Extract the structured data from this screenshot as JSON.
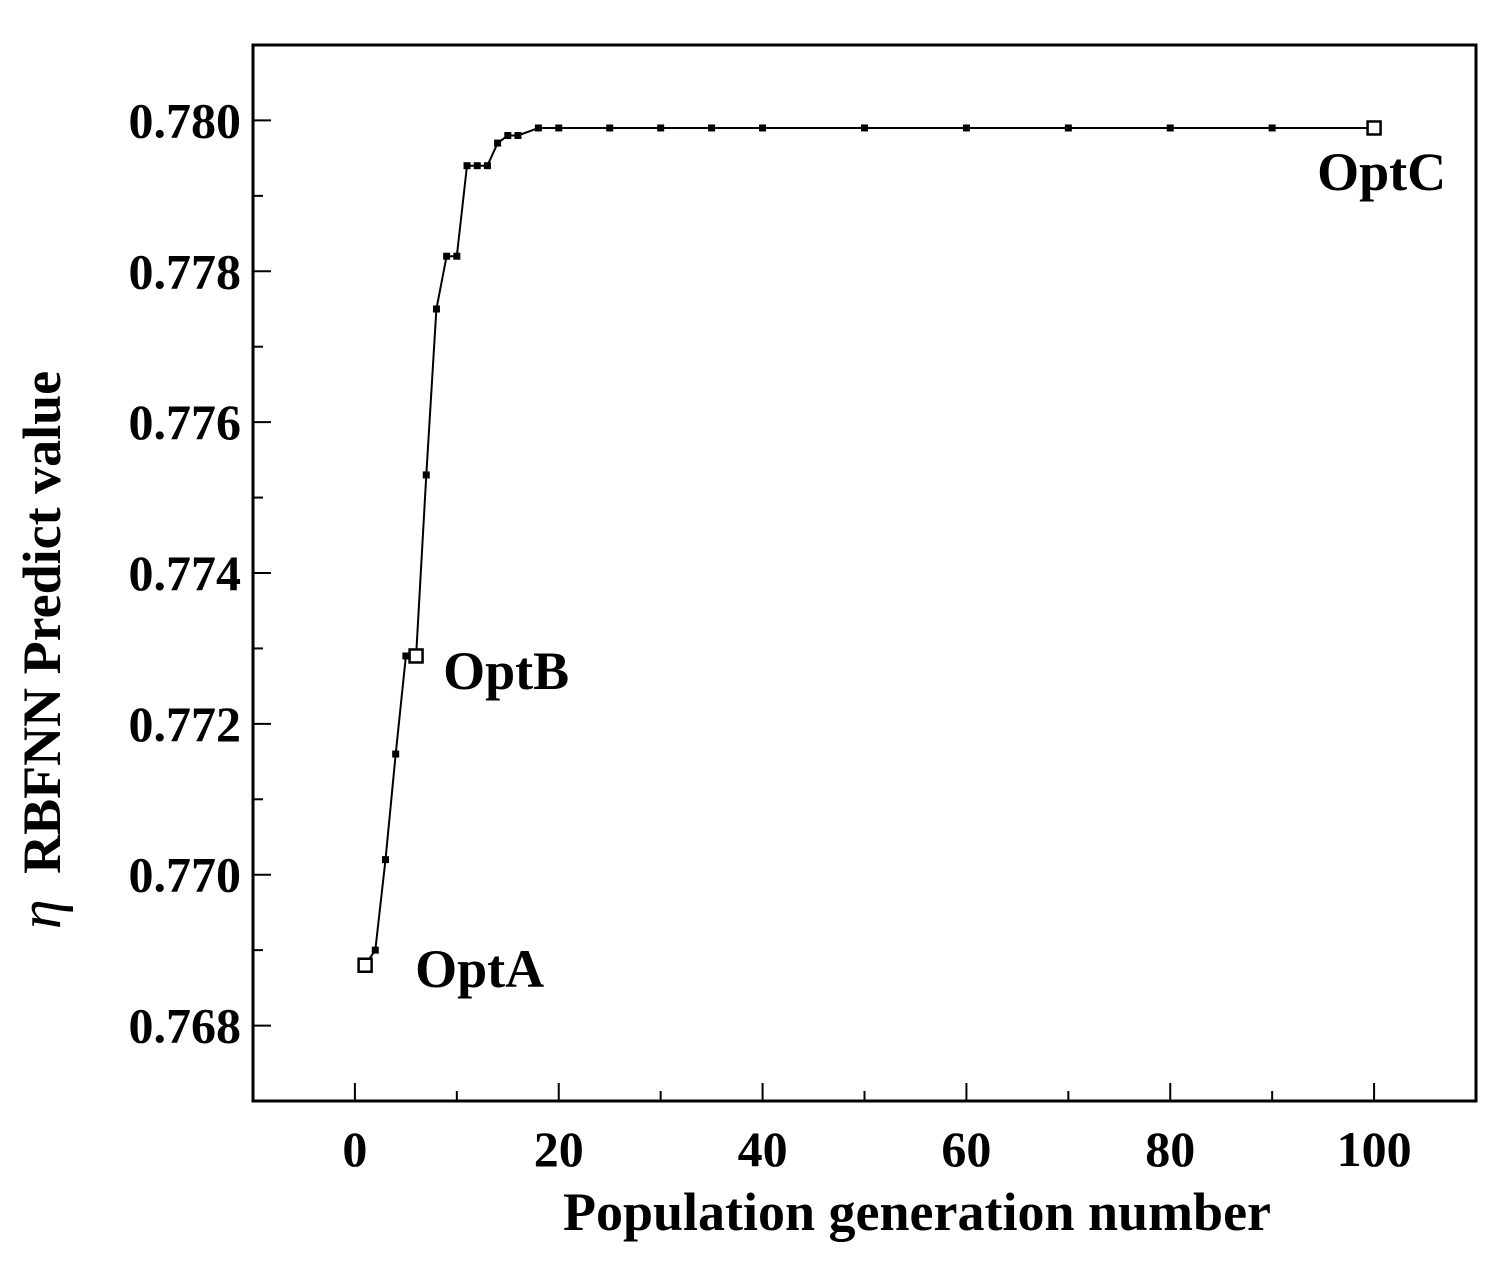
{
  "chart_data": {
    "type": "line",
    "title": "",
    "xlabel": "Population generation number",
    "ylabel_symbol": "η",
    "ylabel": "RBFNN Predict value",
    "xlim": [
      -10,
      110
    ],
    "ylim": [
      0.767,
      0.781
    ],
    "x_ticks": [
      0,
      20,
      40,
      60,
      80,
      100
    ],
    "x_tick_labels": [
      "0",
      "20",
      "40",
      "60",
      "80",
      "100"
    ],
    "y_ticks": [
      0.768,
      0.77,
      0.772,
      0.774,
      0.776,
      0.778,
      0.78
    ],
    "y_tick_labels": [
      "0.768",
      "0.770",
      "0.772",
      "0.774",
      "0.776",
      "0.778",
      "0.780"
    ],
    "grid": false,
    "legend": "none",
    "series": [
      {
        "x": [
          1,
          2,
          3,
          4,
          5,
          6,
          7,
          8,
          9,
          10,
          11,
          12,
          13,
          14,
          15,
          16,
          18,
          20,
          25,
          30,
          35,
          40,
          50,
          60,
          70,
          80,
          90,
          100
        ],
        "y": [
          0.7688,
          0.769,
          0.7702,
          0.7716,
          0.7729,
          0.7729,
          0.7753,
          0.7775,
          0.7782,
          0.7782,
          0.7794,
          0.7794,
          0.7794,
          0.7797,
          0.7798,
          0.7798,
          0.7799,
          0.7799,
          0.7799,
          0.7799,
          0.7799,
          0.7799,
          0.7799,
          0.7799,
          0.7799,
          0.7799,
          0.7799,
          0.7799
        ]
      }
    ],
    "annotations": [
      {
        "label": "OptA",
        "x": 1,
        "y": 0.7688
      },
      {
        "label": "OptB",
        "x": 6,
        "y": 0.7729
      },
      {
        "label": "OptC",
        "x": 100,
        "y": 0.7799
      }
    ]
  }
}
